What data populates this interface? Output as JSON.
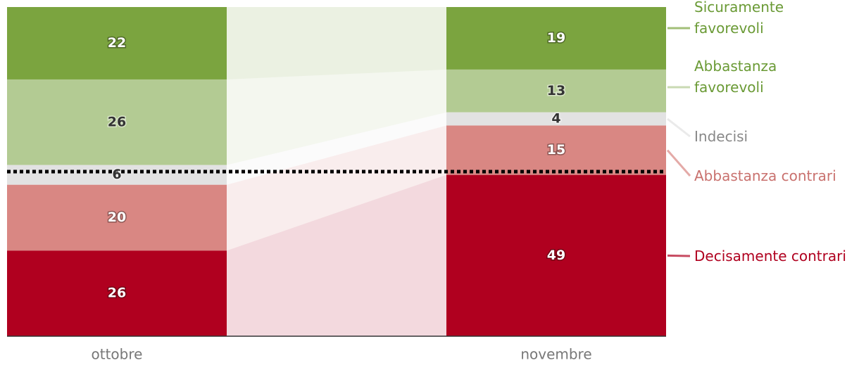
{
  "chart_data": {
    "type": "stacked-bar",
    "categories": [
      "ottobre",
      "novembre"
    ],
    "series": [
      {
        "name": "Sicuramente favorevoli",
        "color": "#7ba43f",
        "values": [
          22,
          19
        ]
      },
      {
        "name": "Abbastanza favorevoli",
        "color": "#b3cb93",
        "values": [
          26,
          13
        ]
      },
      {
        "name": "Indecisi",
        "color": "#e2e2e2",
        "values": [
          6,
          4
        ]
      },
      {
        "name": "Abbastanza contrari",
        "color": "#d98783",
        "values": [
          20,
          15
        ]
      },
      {
        "name": "Decisamente contrari",
        "color": "#b0001f",
        "values": [
          26,
          49
        ]
      }
    ],
    "ylim": [
      0,
      100
    ]
  }
}
